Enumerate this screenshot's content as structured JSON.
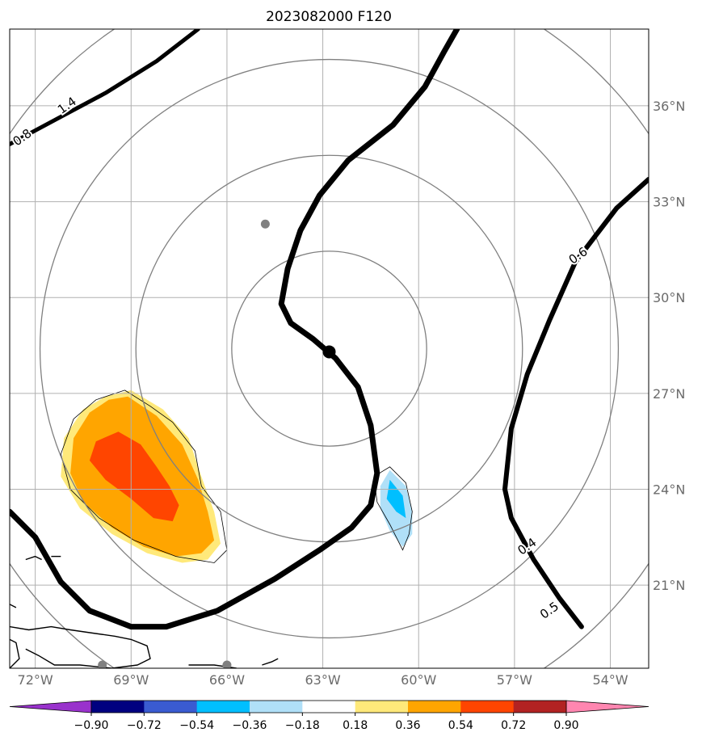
{
  "title": "2023082000 F120",
  "map": {
    "lon_range": [
      -72.8,
      -52.8
    ],
    "lat_range": [
      18.4,
      38.4
    ],
    "lon_ticks": [
      {
        "lon": -72,
        "label": "72°W"
      },
      {
        "lon": -69,
        "label": "69°W"
      },
      {
        "lon": -66,
        "label": "66°W"
      },
      {
        "lon": -63,
        "label": "63°W"
      },
      {
        "lon": -60,
        "label": "60°W"
      },
      {
        "lon": -57,
        "label": "57°W"
      },
      {
        "lon": -54,
        "label": "54°W"
      }
    ],
    "lat_ticks": [
      {
        "lat": 36,
        "label": "36°N"
      },
      {
        "lat": 33,
        "label": "33°N"
      },
      {
        "lat": 30,
        "label": "30°N"
      },
      {
        "lat": 27,
        "label": "27°N"
      },
      {
        "lat": 24,
        "label": "24°N"
      },
      {
        "lat": 21,
        "label": "21°N"
      }
    ],
    "grid": true,
    "ring_center": {
      "lon": -62.8,
      "lat": 28.4
    },
    "ring_radii_deg": [
      3.05,
      6.05,
      9.05,
      12.05
    ],
    "center_marker": {
      "lon": -62.8,
      "lat": 28.3
    },
    "gray_markers": [
      {
        "lon": -64.8,
        "lat": 32.3
      },
      {
        "lon": -69.9,
        "lat": 18.5
      },
      {
        "lon": -66.0,
        "lat": 18.5
      }
    ],
    "colors": {
      "ring": "#808080",
      "grid": "#b0b0b0",
      "contour": "#000000",
      "marker_gray": "#808080",
      "tick_label": "#6b6b6b"
    },
    "contour_labels": [
      {
        "text": "1.4",
        "lon": -71.0,
        "lat": 36.0
      },
      {
        "text": "0.8",
        "lon": -72.4,
        "lat": 35.0
      },
      {
        "text": "0.6",
        "lon": -55.0,
        "lat": 31.3
      },
      {
        "text": "0.4",
        "lon": -56.6,
        "lat": 22.2
      },
      {
        "text": "0.5",
        "lon": -55.9,
        "lat": 20.2
      }
    ],
    "contours": [
      {
        "name": "contour-west",
        "width": 5,
        "points": [
          [
            -66.9,
            38.4
          ],
          [
            -68.2,
            37.4
          ],
          [
            -69.8,
            36.4
          ],
          [
            -71.3,
            35.6
          ],
          [
            -72.8,
            34.8
          ]
        ]
      },
      {
        "name": "contour-central",
        "width": 7,
        "points": [
          [
            -58.8,
            38.4
          ],
          [
            -59.2,
            37.7
          ],
          [
            -59.8,
            36.6
          ],
          [
            -60.8,
            35.4
          ],
          [
            -62.2,
            34.3
          ],
          [
            -63.1,
            33.2
          ],
          [
            -63.7,
            32.1
          ],
          [
            -64.1,
            30.9
          ],
          [
            -64.3,
            29.8
          ],
          [
            -64.0,
            29.2
          ],
          [
            -63.3,
            28.7
          ],
          [
            -62.6,
            28.1
          ],
          [
            -61.9,
            27.2
          ],
          [
            -61.5,
            26.0
          ],
          [
            -61.3,
            24.5
          ],
          [
            -61.5,
            23.5
          ],
          [
            -62.1,
            22.8
          ],
          [
            -63.1,
            22.1
          ],
          [
            -64.5,
            21.2
          ],
          [
            -66.3,
            20.2
          ],
          [
            -67.9,
            19.7
          ],
          [
            -69.0,
            19.7
          ],
          [
            -70.3,
            20.2
          ],
          [
            -71.2,
            21.1
          ],
          [
            -72.0,
            22.5
          ],
          [
            -72.8,
            23.3
          ]
        ]
      },
      {
        "name": "contour-east",
        "width": 6,
        "points": [
          [
            -52.8,
            33.7
          ],
          [
            -53.8,
            32.8
          ],
          [
            -55.1,
            31.1
          ],
          [
            -55.9,
            29.3
          ],
          [
            -56.6,
            27.6
          ],
          [
            -57.1,
            25.9
          ],
          [
            -57.3,
            24.0
          ],
          [
            -57.1,
            23.1
          ],
          [
            -56.4,
            21.8
          ],
          [
            -55.6,
            20.6
          ],
          [
            -54.9,
            19.7
          ]
        ]
      }
    ],
    "shading": [
      {
        "name": "positive-anomaly-outer",
        "fill": "#ffe97a",
        "points": [
          [
            -69.0,
            27.1
          ],
          [
            -68.0,
            26.5
          ],
          [
            -67.2,
            25.6
          ],
          [
            -66.8,
            24.4
          ],
          [
            -66.4,
            23.3
          ],
          [
            -66.2,
            22.3
          ],
          [
            -66.6,
            21.8
          ],
          [
            -67.4,
            21.7
          ],
          [
            -68.5,
            22.0
          ],
          [
            -69.6,
            22.6
          ],
          [
            -70.6,
            23.4
          ],
          [
            -71.2,
            24.4
          ],
          [
            -71.1,
            25.6
          ],
          [
            -70.5,
            26.5
          ],
          [
            -69.8,
            26.9
          ]
        ]
      },
      {
        "name": "positive-anomaly-mid",
        "fill": "#ffa500",
        "points": [
          [
            -69.1,
            26.9
          ],
          [
            -68.2,
            26.3
          ],
          [
            -67.4,
            25.4
          ],
          [
            -66.9,
            24.3
          ],
          [
            -66.6,
            23.3
          ],
          [
            -66.4,
            22.4
          ],
          [
            -66.8,
            22.0
          ],
          [
            -67.6,
            21.9
          ],
          [
            -68.6,
            22.2
          ],
          [
            -69.6,
            22.8
          ],
          [
            -70.5,
            23.6
          ],
          [
            -70.9,
            24.5
          ],
          [
            -70.8,
            25.6
          ],
          [
            -70.3,
            26.4
          ],
          [
            -69.7,
            26.8
          ]
        ]
      },
      {
        "name": "positive-anomaly-core",
        "fill": "#ff4500",
        "points": [
          [
            -69.4,
            25.8
          ],
          [
            -68.7,
            25.4
          ],
          [
            -68.2,
            24.7
          ],
          [
            -67.8,
            24.1
          ],
          [
            -67.5,
            23.5
          ],
          [
            -67.7,
            23.0
          ],
          [
            -68.3,
            23.1
          ],
          [
            -69.0,
            23.7
          ],
          [
            -69.8,
            24.3
          ],
          [
            -70.3,
            24.9
          ],
          [
            -70.1,
            25.5
          ]
        ]
      },
      {
        "name": "negative-anomaly-outer",
        "fill": "#b0e0f8",
        "points": [
          [
            -60.9,
            24.6
          ],
          [
            -60.4,
            24.1
          ],
          [
            -60.2,
            23.3
          ],
          [
            -60.2,
            22.6
          ],
          [
            -60.5,
            22.2
          ],
          [
            -60.9,
            22.7
          ],
          [
            -61.2,
            23.4
          ],
          [
            -61.2,
            24.1
          ]
        ]
      },
      {
        "name": "negative-anomaly-core",
        "fill": "#00bfff",
        "points": [
          [
            -60.9,
            24.3
          ],
          [
            -60.5,
            23.8
          ],
          [
            -60.4,
            23.1
          ],
          [
            -60.7,
            23.3
          ],
          [
            -61.0,
            23.7
          ]
        ]
      }
    ],
    "shading_outlines": [
      {
        "name": "positive-anomaly-outline",
        "points": [
          [
            -69.2,
            27.1
          ],
          [
            -68.4,
            26.6
          ],
          [
            -67.7,
            26.1
          ],
          [
            -67.0,
            25.2
          ],
          [
            -66.8,
            24.1
          ],
          [
            -66.2,
            23.3
          ],
          [
            -66.0,
            22.1
          ],
          [
            -66.4,
            21.7
          ],
          [
            -67.6,
            21.9
          ],
          [
            -68.9,
            22.4
          ],
          [
            -70.0,
            23.1
          ],
          [
            -70.9,
            24.0
          ],
          [
            -71.2,
            25.1
          ],
          [
            -70.8,
            26.2
          ],
          [
            -70.1,
            26.8
          ]
        ]
      },
      {
        "name": "negative-anomaly-outline",
        "points": [
          [
            -60.9,
            24.7
          ],
          [
            -60.4,
            24.2
          ],
          [
            -60.2,
            23.3
          ],
          [
            -60.3,
            22.6
          ],
          [
            -60.5,
            22.1
          ],
          [
            -60.9,
            22.9
          ],
          [
            -61.3,
            23.6
          ],
          [
            -61.4,
            24.4
          ]
        ]
      }
    ],
    "coast": [
      {
        "name": "coast-caribbean-island",
        "points": [
          [
            -72.8,
            19.7
          ],
          [
            -72.2,
            19.6
          ],
          [
            -71.5,
            19.7
          ],
          [
            -70.9,
            19.6
          ],
          [
            -70.2,
            19.5
          ],
          [
            -69.5,
            19.4
          ],
          [
            -69.0,
            19.3
          ],
          [
            -68.5,
            19.1
          ],
          [
            -68.4,
            18.7
          ],
          [
            -68.8,
            18.5
          ],
          [
            -69.6,
            18.4
          ],
          [
            -70.6,
            18.5
          ],
          [
            -71.4,
            18.5
          ],
          [
            -71.9,
            18.8
          ],
          [
            -72.3,
            19.0
          ]
        ]
      },
      {
        "name": "coast-west-islet",
        "points": [
          [
            -72.8,
            19.3
          ],
          [
            -72.6,
            19.2
          ],
          [
            -72.5,
            18.7
          ],
          [
            -72.8,
            18.4
          ]
        ]
      },
      {
        "name": "coast-puerto-rico",
        "points": [
          [
            -67.2,
            18.5
          ],
          [
            -66.4,
            18.5
          ],
          [
            -65.7,
            18.4
          ]
        ]
      },
      {
        "name": "coast-small-islets",
        "points": [
          [
            -64.9,
            18.5
          ],
          [
            -64.6,
            18.6
          ],
          [
            -64.4,
            18.7
          ]
        ]
      },
      {
        "name": "coast-bahamas-a",
        "points": [
          [
            -72.3,
            21.8
          ],
          [
            -72.0,
            21.9
          ],
          [
            -71.8,
            21.8
          ]
        ]
      },
      {
        "name": "coast-bahamas-b",
        "points": [
          [
            -71.5,
            21.9
          ],
          [
            -71.2,
            21.9
          ]
        ]
      },
      {
        "name": "coast-bahamas-c",
        "points": [
          [
            -72.8,
            20.4
          ],
          [
            -72.6,
            20.3
          ]
        ]
      },
      {
        "name": "coast-atlantic-islet",
        "points": [
          [
            -64.9,
            32.3
          ],
          [
            -64.8,
            32.35
          ]
        ]
      }
    ]
  },
  "colorbar": {
    "ticks": [
      "−0.90",
      "−0.72",
      "−0.54",
      "−0.36",
      "−0.18",
      "0.18",
      "0.36",
      "0.54",
      "0.72",
      "0.90"
    ],
    "under_color": "#9932cc",
    "over_color": "#ff86b0",
    "colors": [
      "#000080",
      "#3a5bd1",
      "#00bfff",
      "#b0e0f8",
      "#ffffff",
      "#ffe97a",
      "#ffa500",
      "#ff4500",
      "#b22222"
    ]
  }
}
